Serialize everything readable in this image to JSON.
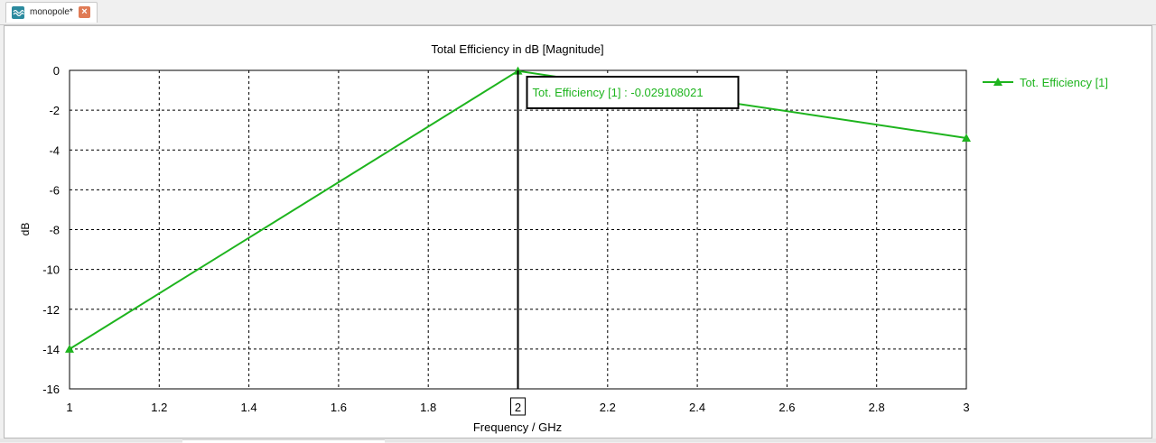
{
  "tab": {
    "label": "monopole*",
    "icon": "waveform-icon",
    "close_icon": "close-icon"
  },
  "colors": {
    "series": "#1eb41e",
    "grid": "#000000",
    "cursor": "#000000"
  },
  "chart_data": {
    "type": "line",
    "title": "Total Efficiency in dB [Magnitude]",
    "xlabel": "Frequency / GHz",
    "ylabel": "dB",
    "xlim": [
      1,
      3
    ],
    "ylim": [
      -16,
      0
    ],
    "x_ticks": [
      1,
      1.2,
      1.4,
      1.6,
      1.8,
      2,
      2.2,
      2.4,
      2.6,
      2.8,
      3
    ],
    "x_tick_labels": [
      "1",
      "1.2",
      "1.4",
      "1.6",
      "1.8",
      "2",
      "2.2",
      "2.4",
      "2.6",
      "2.8",
      "3"
    ],
    "y_ticks": [
      0,
      -2,
      -4,
      -6,
      -8,
      -10,
      -12,
      -14,
      -16
    ],
    "y_tick_labels": [
      "0",
      "-2",
      "-4",
      "-6",
      "-8",
      "-10",
      "-12",
      "-14",
      "-16"
    ],
    "grid": true,
    "legend_position": "right",
    "series": [
      {
        "name": "Tot. Efficiency [1]",
        "marker": "triangle",
        "x": [
          1,
          2,
          3
        ],
        "y": [
          -14.0,
          -0.029108021,
          -3.4
        ]
      }
    ],
    "cursor": {
      "x": 2,
      "x_label": "2",
      "annotation": "Tot. Efficiency [1] : -0.029108021"
    }
  }
}
